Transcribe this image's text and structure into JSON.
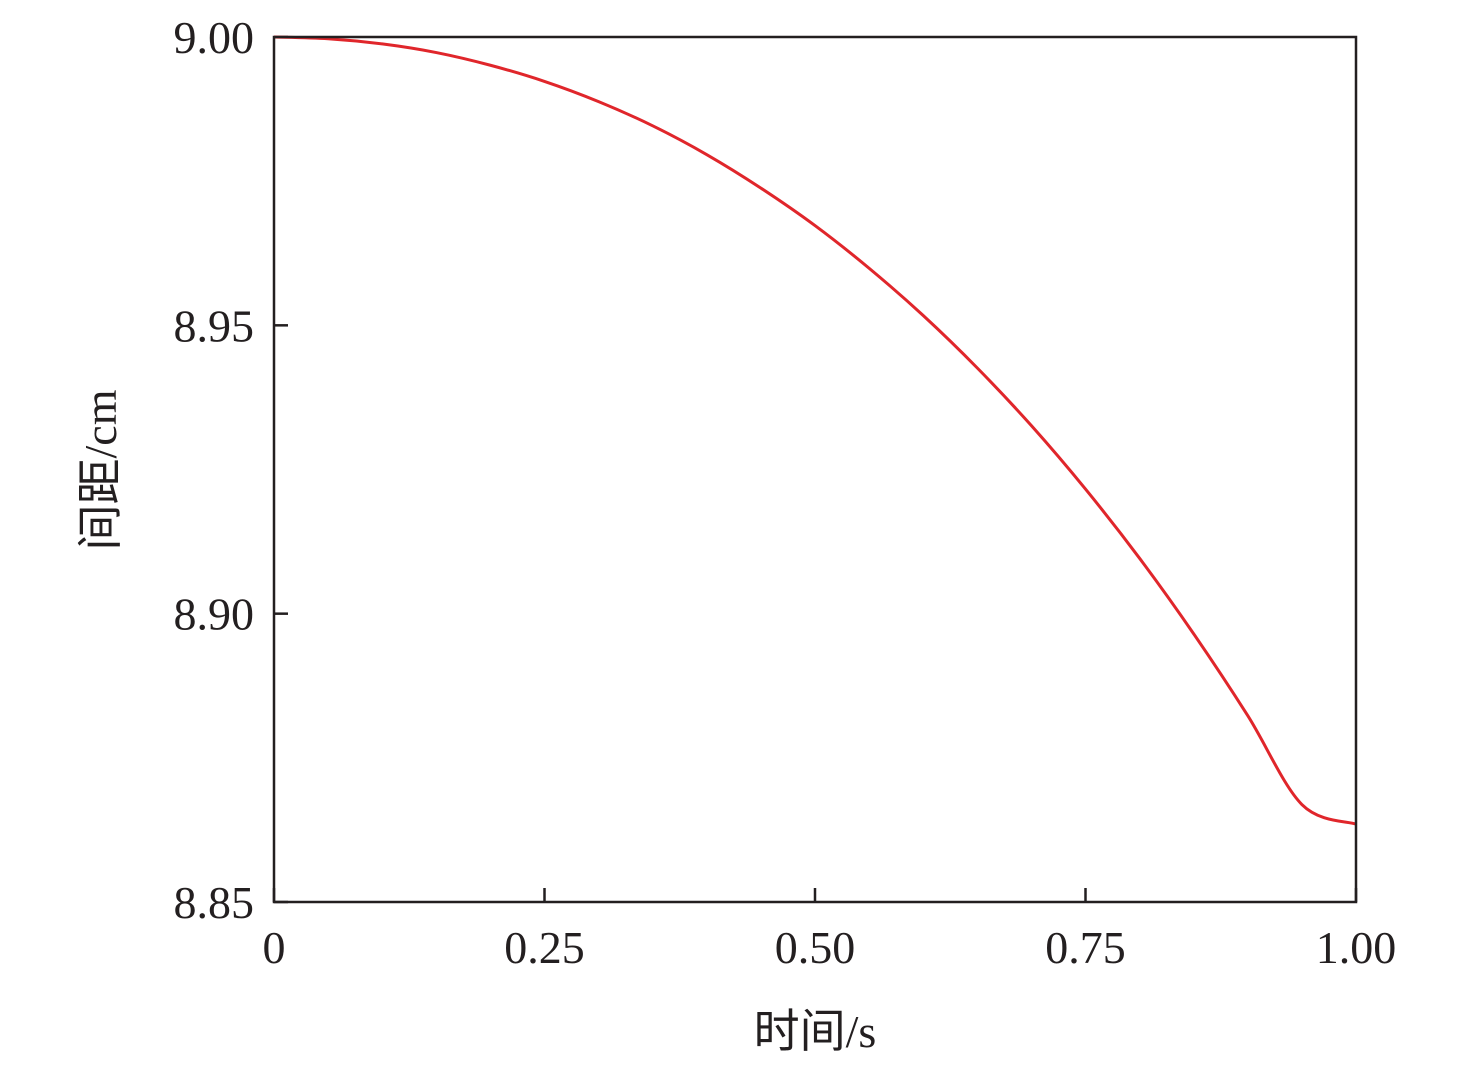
{
  "chart_data": {
    "type": "line",
    "title": "",
    "xlabel": "时间/s",
    "ylabel": "间距/cm",
    "xlim": [
      0,
      1.0
    ],
    "ylim": [
      8.85,
      9.0
    ],
    "xticks": [
      0,
      0.25,
      0.5,
      0.75,
      1.0
    ],
    "xtick_labels": [
      "0",
      "0.25",
      "0.50",
      "0.75",
      "1.00"
    ],
    "yticks": [
      8.85,
      8.9,
      8.95,
      9.0
    ],
    "ytick_labels": [
      "8.85",
      "8.90",
      "8.95",
      "9.00"
    ],
    "grid": false,
    "legend": "none",
    "series": [
      {
        "color": "#e0262b",
        "x": [
          0,
          0.05,
          0.1,
          0.15,
          0.2,
          0.25,
          0.3,
          0.35,
          0.4,
          0.45,
          0.5,
          0.55,
          0.6,
          0.65,
          0.7,
          0.75,
          0.8,
          0.85,
          0.9,
          0.95,
          1.0
        ],
        "y": [
          9.0,
          8.9997,
          8.9988,
          8.9973,
          8.9951,
          8.9923,
          8.9888,
          8.9846,
          8.9796,
          8.9738,
          8.9673,
          8.9599,
          8.9517,
          8.9426,
          8.9326,
          8.9216,
          8.9096,
          8.8965,
          8.8823,
          8.8669,
          8.8635
        ]
      }
    ]
  }
}
